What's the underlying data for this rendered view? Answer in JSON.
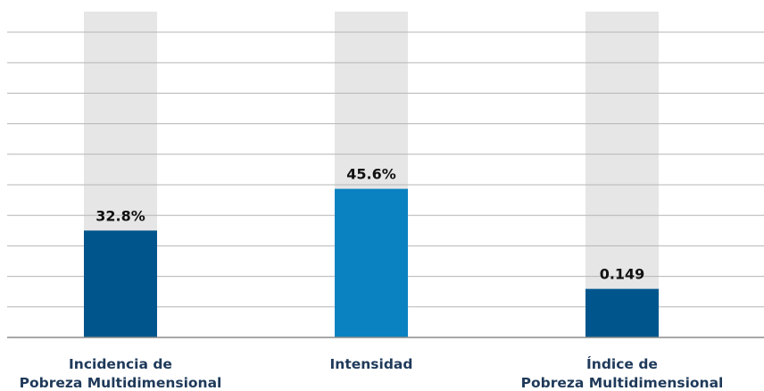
{
  "chart_data": {
    "type": "bar",
    "categories": [
      [
        "Incidencia de",
        "Pobreza Multidimensional"
      ],
      [
        "Intensidad"
      ],
      [
        "Índice de",
        "Pobreza Multidimensional"
      ]
    ],
    "values": [
      32.8,
      45.6,
      0.149
    ],
    "value_labels": [
      "32.8%",
      "45.6%",
      "0.149"
    ],
    "scale_max": [
      100,
      100,
      1
    ],
    "title": "",
    "xlabel": "",
    "ylabel": "",
    "grid": true,
    "colors": {
      "bars": [
        "#00558c",
        "#0a81c1",
        "#00558c"
      ],
      "background_bar": "#e6e6e6",
      "gridline": "#b5b5b5",
      "axis": "#8c8c8c",
      "category_text": "#1f3a5a",
      "value_text": "#111111"
    }
  }
}
